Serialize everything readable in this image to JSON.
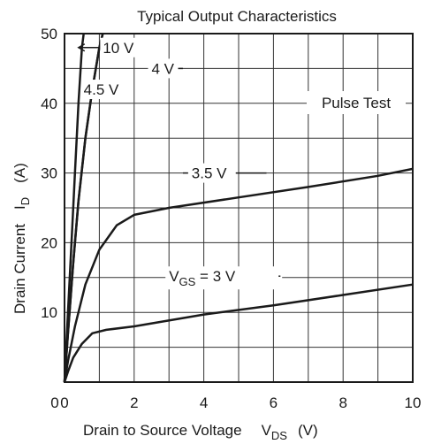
{
  "chart_data": {
    "type": "line",
    "title": "Typical Output Characteristics",
    "xlabel": {
      "text": "Drain to Source Voltage",
      "symbol": "V",
      "sub": "DS",
      "unit": "(V)"
    },
    "ylabel": {
      "text": "Drain Current",
      "symbol": "I",
      "sub": "D",
      "unit": "(A)"
    },
    "xlim": [
      0,
      10
    ],
    "ylim": [
      0,
      50
    ],
    "xticks": [
      "0",
      "2",
      "4",
      "6",
      "8",
      "10"
    ],
    "yticks": [
      "10",
      "20",
      "30",
      "40",
      "50"
    ],
    "grid": true,
    "annotation": "Pulse Test",
    "series": [
      {
        "name": "10 V",
        "x": [
          0,
          0.1,
          0.2,
          0.3,
          0.4,
          0.5,
          0.55
        ],
        "y": [
          0,
          10,
          20,
          30,
          40,
          48,
          50
        ]
      },
      {
        "name": "4.5 V",
        "x": [
          0,
          0.1,
          0.25,
          0.4,
          0.6,
          0.8,
          1.0,
          1.1
        ],
        "y": [
          0,
          7,
          17,
          26,
          35,
          42,
          48,
          50
        ]
      },
      {
        "name": "4 V",
        "x": [
          0,
          0.1,
          0.25,
          0.4,
          0.6,
          0.8,
          1.0,
          1.1
        ],
        "y": [
          0,
          7,
          17,
          26,
          35,
          42,
          48,
          50
        ]
      },
      {
        "name": "3.5 V",
        "x": [
          0,
          0.1,
          0.3,
          0.6,
          1.0,
          1.5,
          2.0,
          3.0,
          5.0,
          7.0,
          9.0,
          10.0
        ],
        "y": [
          0,
          3,
          8,
          14,
          19,
          22.5,
          24,
          25,
          26.5,
          28,
          29.6,
          30.6
        ]
      },
      {
        "name": "V_GS = 3 V",
        "x": [
          0,
          0.1,
          0.25,
          0.5,
          0.8,
          1.2,
          2.0,
          4.0,
          6.0,
          8.0,
          10.0
        ],
        "y": [
          0,
          1.5,
          3.5,
          5.5,
          7,
          7.5,
          8,
          9.7,
          11,
          12.5,
          14
        ]
      }
    ],
    "curve_labels": [
      {
        "text": "10 V",
        "at": [
          1.1,
          48
        ],
        "leader_to": [
          0.3,
          48
        ]
      },
      {
        "text": "4.5 V",
        "at": [
          0.55,
          42
        ]
      },
      {
        "text": "4 V",
        "at": [
          2.5,
          45
        ],
        "leader_to": [
          3.4,
          45
        ]
      },
      {
        "text": "3.5 V",
        "at": [
          3.65,
          30
        ],
        "leader_left": [
          3.4,
          30
        ],
        "leader_right": [
          5.8,
          30
        ]
      },
      {
        "text": "V_GS = 3 V",
        "at": [
          3.0,
          15.2
        ],
        "leader_right": [
          6.2,
          15.2
        ]
      }
    ]
  }
}
